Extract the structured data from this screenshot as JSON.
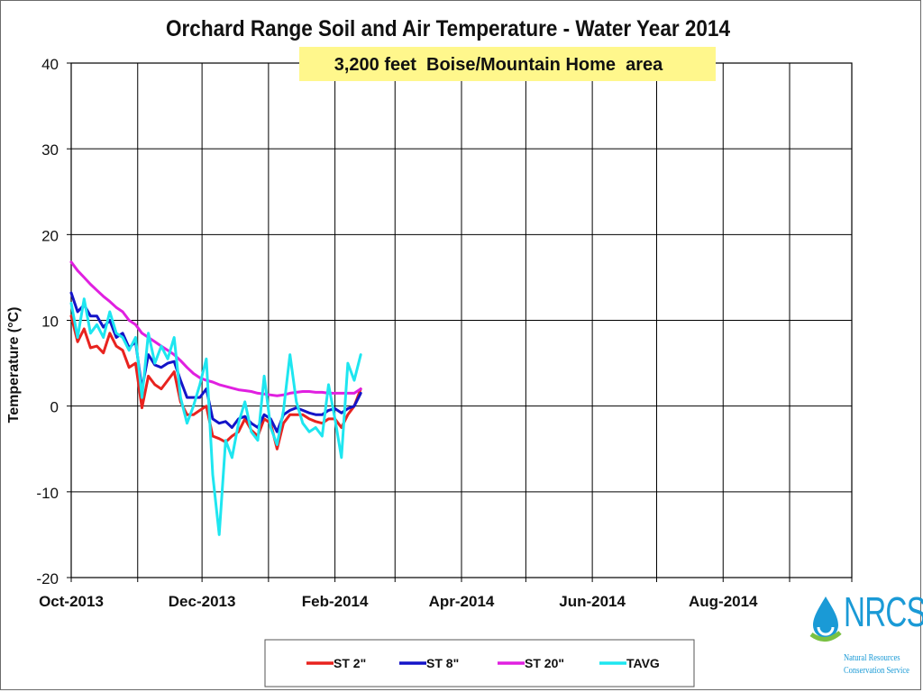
{
  "chart_data": {
    "type": "line",
    "title": "Orchard Range Soil and Air Temperature - Water Year 2014",
    "annotation": "3,200 feet  Boise/Mountain Home  area",
    "ylabel": "Temperature (°C)",
    "xlabel": "",
    "ylim": [
      -20,
      40
    ],
    "yticks": [
      -20,
      -10,
      0,
      10,
      20,
      30,
      40
    ],
    "xlim": [
      "2013-10-01",
      "2014-09-30"
    ],
    "xtick_labels": [
      "Oct-2013",
      "Dec-2013",
      "Feb-2014",
      "Apr-2014",
      "Jun-2014",
      "Aug-2014"
    ],
    "xtick_dates": [
      "2013-10-01",
      "2013-12-01",
      "2014-02-01",
      "2014-04-01",
      "2014-06-01",
      "2014-08-01"
    ],
    "x_gridline_dates": [
      "2013-10-01",
      "2013-11-01",
      "2013-12-01",
      "2014-01-01",
      "2014-02-01",
      "2014-03-01",
      "2014-04-01",
      "2014-05-01",
      "2014-06-01",
      "2014-07-01",
      "2014-08-01",
      "2014-09-01",
      "2014-09-30"
    ],
    "grid": true,
    "legend_position": "bottom",
    "x": [
      "2013-10-01",
      "2013-10-04",
      "2013-10-07",
      "2013-10-10",
      "2013-10-13",
      "2013-10-16",
      "2013-10-19",
      "2013-10-22",
      "2013-10-25",
      "2013-10-28",
      "2013-10-31",
      "2013-11-03",
      "2013-11-06",
      "2013-11-09",
      "2013-11-12",
      "2013-11-15",
      "2013-11-18",
      "2013-11-21",
      "2013-11-24",
      "2013-11-27",
      "2013-11-30",
      "2013-12-03",
      "2013-12-06",
      "2013-12-09",
      "2013-12-12",
      "2013-12-15",
      "2013-12-18",
      "2013-12-21",
      "2013-12-24",
      "2013-12-27",
      "2013-12-30",
      "2014-01-02",
      "2014-01-05",
      "2014-01-08",
      "2014-01-11",
      "2014-01-14",
      "2014-01-17",
      "2014-01-20",
      "2014-01-23",
      "2014-01-26",
      "2014-01-29",
      "2014-02-01",
      "2014-02-04",
      "2014-02-07",
      "2014-02-10",
      "2014-02-13"
    ],
    "series": [
      {
        "name": "ST 2\"",
        "color": "#e8231f",
        "values": [
          10.5,
          7.5,
          9.0,
          6.8,
          7.0,
          6.2,
          8.5,
          7.0,
          6.5,
          4.5,
          5.0,
          -0.2,
          3.5,
          2.5,
          2.0,
          3.0,
          4.0,
          0.5,
          -1.0,
          -1.0,
          -0.5,
          0.0,
          -3.5,
          -3.8,
          -4.2,
          -3.5,
          -3.0,
          -1.5,
          -2.8,
          -3.5,
          -1.5,
          -2.0,
          -5.0,
          -2.0,
          -1.0,
          -1.0,
          -1.0,
          -1.5,
          -1.8,
          -2.0,
          -1.5,
          -1.5,
          -2.5,
          -1.0,
          0.0,
          2.0
        ]
      },
      {
        "name": "ST 8\"",
        "color": "#1414c8",
        "values": [
          13.2,
          11.0,
          11.8,
          10.5,
          10.5,
          9.2,
          10.0,
          8.0,
          8.5,
          6.8,
          7.5,
          2.0,
          6.0,
          4.8,
          4.5,
          5.0,
          5.2,
          3.0,
          1.0,
          1.0,
          1.0,
          2.0,
          -1.5,
          -2.0,
          -1.8,
          -2.5,
          -1.5,
          -1.2,
          -2.0,
          -2.5,
          -1.0,
          -1.5,
          -3.0,
          -1.0,
          -0.5,
          -0.2,
          -0.5,
          -0.8,
          -1.0,
          -1.0,
          -0.5,
          -0.3,
          -0.8,
          -0.3,
          0.0,
          1.5
        ]
      },
      {
        "name": "ST 20\"",
        "color": "#e020e0",
        "values": [
          16.8,
          15.8,
          15.0,
          14.2,
          13.5,
          12.8,
          12.2,
          11.5,
          11.0,
          10.0,
          9.5,
          8.5,
          8.0,
          7.5,
          7.0,
          6.5,
          6.0,
          5.3,
          4.5,
          3.8,
          3.3,
          3.0,
          2.8,
          2.5,
          2.3,
          2.1,
          1.9,
          1.8,
          1.7,
          1.5,
          1.4,
          1.3,
          1.2,
          1.3,
          1.5,
          1.6,
          1.7,
          1.7,
          1.6,
          1.6,
          1.5,
          1.5,
          1.5,
          1.5,
          1.5,
          2.0
        ]
      },
      {
        "name": "TAVG",
        "color": "#1ee6f0",
        "values": [
          12.0,
          8.0,
          12.5,
          8.5,
          9.5,
          8.0,
          11.0,
          8.5,
          8.0,
          6.5,
          8.0,
          1.0,
          8.5,
          5.0,
          7.0,
          5.5,
          8.0,
          1.0,
          -2.0,
          0.0,
          2.5,
          5.5,
          -8.0,
          -15.0,
          -4.0,
          -6.0,
          -2.0,
          0.5,
          -3.0,
          -4.0,
          3.5,
          -2.5,
          -4.5,
          -0.5,
          6.0,
          0.5,
          -2.0,
          -3.0,
          -2.5,
          -3.5,
          2.5,
          -1.5,
          -6.0,
          5.0,
          3.0,
          6.0
        ]
      }
    ]
  }
}
